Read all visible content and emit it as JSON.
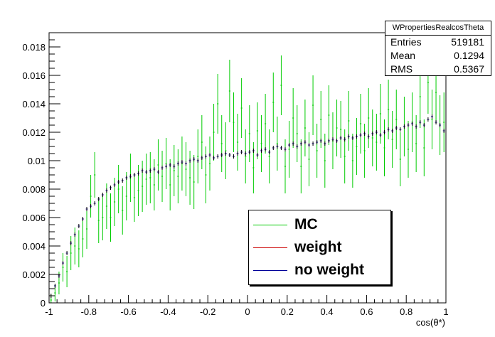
{
  "chart_data": {
    "type": "scatter",
    "title": "",
    "xlabel": "cos(θ*)",
    "ylabel": "",
    "xlim": [
      -1,
      1
    ],
    "ylim": [
      0,
      0.019
    ],
    "x_ticks": [
      -1,
      -0.8,
      -0.6,
      -0.4,
      -0.2,
      0,
      0.2,
      0.4,
      0.6,
      0.8,
      1
    ],
    "x_tick_labels": [
      "-1",
      "-0.8",
      "-0.6",
      "-0.4",
      "-0.2",
      "0",
      "0.2",
      "0.4",
      "0.6",
      "0.8",
      "1"
    ],
    "y_ticks": [
      0,
      0.002,
      0.004,
      0.006,
      0.008,
      0.01,
      0.012,
      0.014,
      0.016,
      0.018
    ],
    "y_tick_labels": [
      "0",
      "0.002",
      "0.004",
      "0.006",
      "0.008",
      "0.01",
      "0.012",
      "0.014",
      "0.016",
      "0.018"
    ],
    "stats": {
      "name": "WPropertiesRealcosTheta",
      "rows": [
        {
          "label": "Entries",
          "value": "519181"
        },
        {
          "label": "Mean",
          "value": "0.1294"
        },
        {
          "label": "RMS",
          "value": "0.5367"
        }
      ]
    },
    "legend_position": "bottom-right",
    "series": [
      {
        "name": "MC",
        "color": "#00cc00",
        "note": "fluctuating around the weighted curve with larger error bars"
      },
      {
        "name": "weight",
        "color": "#cc0000"
      },
      {
        "name": "no weight",
        "color": "#000099"
      }
    ],
    "bins": {
      "x": [
        -0.99,
        -0.97,
        -0.95,
        -0.93,
        -0.91,
        -0.89,
        -0.87,
        -0.85,
        -0.83,
        -0.81,
        -0.79,
        -0.77,
        -0.75,
        -0.73,
        -0.71,
        -0.69,
        -0.67,
        -0.65,
        -0.63,
        -0.61,
        -0.59,
        -0.57,
        -0.55,
        -0.53,
        -0.51,
        -0.49,
        -0.47,
        -0.45,
        -0.43,
        -0.41,
        -0.39,
        -0.37,
        -0.35,
        -0.33,
        -0.31,
        -0.29,
        -0.27,
        -0.25,
        -0.23,
        -0.21,
        -0.19,
        -0.17,
        -0.15,
        -0.13,
        -0.11,
        -0.09,
        -0.07,
        -0.05,
        -0.03,
        -0.01,
        0.01,
        0.03,
        0.05,
        0.07,
        0.09,
        0.11,
        0.13,
        0.15,
        0.17,
        0.19,
        0.21,
        0.23,
        0.25,
        0.27,
        0.29,
        0.31,
        0.33,
        0.35,
        0.37,
        0.39,
        0.41,
        0.43,
        0.45,
        0.47,
        0.49,
        0.51,
        0.53,
        0.55,
        0.57,
        0.59,
        0.61,
        0.63,
        0.65,
        0.67,
        0.69,
        0.71,
        0.73,
        0.75,
        0.77,
        0.79,
        0.81,
        0.83,
        0.85,
        0.87,
        0.89,
        0.91,
        0.93,
        0.95,
        0.97,
        0.99
      ],
      "weight": [
        0.0005,
        0.0012,
        0.0019,
        0.0028,
        0.0035,
        0.0042,
        0.0048,
        0.0054,
        0.0059,
        0.0066,
        0.0068,
        0.007,
        0.0073,
        0.0076,
        0.0079,
        0.0081,
        0.0083,
        0.0085,
        0.0086,
        0.0088,
        0.0089,
        0.009,
        0.0091,
        0.0093,
        0.0092,
        0.0093,
        0.0094,
        0.0092,
        0.0095,
        0.0096,
        0.0097,
        0.0096,
        0.0098,
        0.0099,
        0.0098,
        0.01,
        0.0101,
        0.01,
        0.0102,
        0.0103,
        0.0104,
        0.0102,
        0.0103,
        0.0104,
        0.0105,
        0.0104,
        0.0103,
        0.0105,
        0.0106,
        0.0105,
        0.0106,
        0.0107,
        0.0104,
        0.0107,
        0.0108,
        0.0106,
        0.0109,
        0.011,
        0.0109,
        0.0108,
        0.0111,
        0.0112,
        0.011,
        0.0112,
        0.0113,
        0.0111,
        0.0112,
        0.0113,
        0.0114,
        0.0112,
        0.0114,
        0.0115,
        0.0114,
        0.0116,
        0.0115,
        0.0117,
        0.0116,
        0.0117,
        0.0118,
        0.0119,
        0.0117,
        0.0119,
        0.012,
        0.0118,
        0.012,
        0.0122,
        0.0121,
        0.0123,
        0.0122,
        0.0124,
        0.0125,
        0.0126,
        0.0124,
        0.0127,
        0.0125,
        0.0129,
        0.0131,
        0.0127,
        0.0125,
        0.0121
      ],
      "mc": [
        0.0002,
        0.0007,
        0.0014,
        0.0025,
        0.0022,
        0.0035,
        0.004,
        0.0038,
        0.0045,
        0.0052,
        0.0075,
        0.009,
        0.0058,
        0.006,
        0.0068,
        0.006,
        0.0071,
        0.008,
        0.0065,
        0.0075,
        0.0088,
        0.0074,
        0.0079,
        0.0082,
        0.0087,
        0.0088,
        0.0083,
        0.0097,
        0.0089,
        0.0098,
        0.0083,
        0.0093,
        0.0089,
        0.0098,
        0.0094,
        0.0088,
        0.0085,
        0.0103,
        0.0113,
        0.009,
        0.0098,
        0.012,
        0.014,
        0.0112,
        0.0107,
        0.0149,
        0.0127,
        0.0113,
        0.0137,
        0.0103,
        0.0119,
        0.0095,
        0.0121,
        0.0112,
        0.0126,
        0.0103,
        0.0141,
        0.0112,
        0.0153,
        0.0096,
        0.0108,
        0.013,
        0.0119,
        0.0096,
        0.0123,
        0.0101,
        0.0139,
        0.0107,
        0.0129,
        0.01,
        0.0132,
        0.0114,
        0.0123,
        0.0122,
        0.0103,
        0.0128,
        0.01,
        0.011,
        0.0126,
        0.0107,
        0.013,
        0.0116,
        0.0113,
        0.0133,
        0.0109,
        0.0136,
        0.0115,
        0.0129,
        0.0101,
        0.0124,
        0.0108,
        0.0127,
        0.0112,
        0.0145,
        0.0109,
        0.0155,
        0.0129,
        0.0148,
        0.0125,
        0.0127
      ],
      "mc_err": [
        0.0004,
        0.0006,
        0.0008,
        0.001,
        0.0011,
        0.0012,
        0.0013,
        0.0013,
        0.0013,
        0.0014,
        0.0015,
        0.0016,
        0.0016,
        0.0016,
        0.0016,
        0.0017,
        0.0017,
        0.0017,
        0.0017,
        0.0017,
        0.0017,
        0.0017,
        0.0018,
        0.0018,
        0.0018,
        0.0018,
        0.0018,
        0.0018,
        0.0018,
        0.0018,
        0.0018,
        0.0018,
        0.0019,
        0.0019,
        0.0019,
        0.0019,
        0.0019,
        0.0019,
        0.0019,
        0.002,
        0.0019,
        0.002,
        0.0021,
        0.002,
        0.002,
        0.0022,
        0.0021,
        0.002,
        0.0021,
        0.0019,
        0.002,
        0.0018,
        0.002,
        0.002,
        0.0021,
        0.0019,
        0.0021,
        0.0019,
        0.0021,
        0.0019,
        0.002,
        0.0021,
        0.002,
        0.0019,
        0.002,
        0.0019,
        0.0021,
        0.0019,
        0.002,
        0.0019,
        0.0021,
        0.002,
        0.002,
        0.002,
        0.0019,
        0.0021,
        0.0019,
        0.002,
        0.0021,
        0.0019,
        0.0021,
        0.002,
        0.002,
        0.0021,
        0.002,
        0.0021,
        0.002,
        0.0021,
        0.0019,
        0.0021,
        0.002,
        0.0021,
        0.002,
        0.0022,
        0.002,
        0.0022,
        0.0021,
        0.0022,
        0.0021,
        0.0021
      ]
    }
  }
}
